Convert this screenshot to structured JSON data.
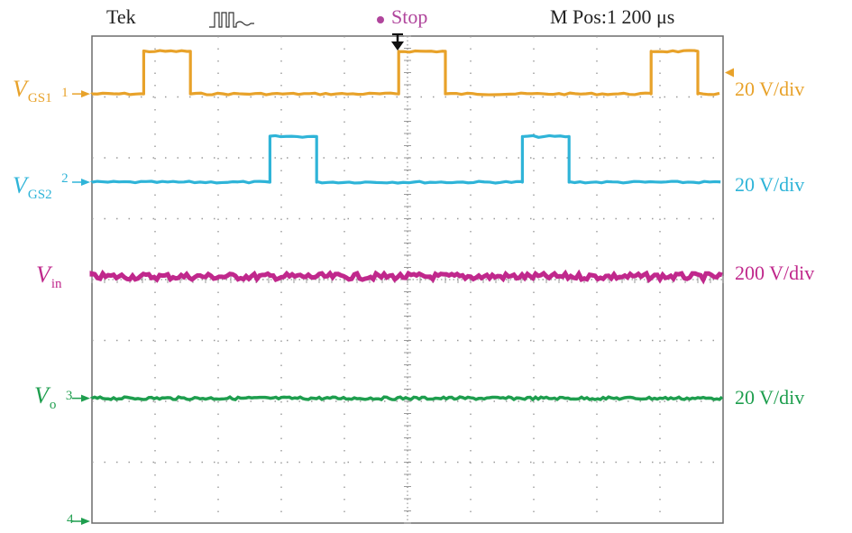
{
  "header": {
    "brand": "Tek",
    "status": "Stop",
    "position": "M Pos:1 200 μs"
  },
  "colors": {
    "ch1": "#E8A22A",
    "ch2": "#2FB4D8",
    "vin": "#C0288C",
    "ch3": "#1E9E4E",
    "ch4": "#1E9E4E",
    "stop_dot": "#B0459C",
    "grid": "#9a9a9a"
  },
  "channels": [
    {
      "id": "ch1",
      "label_main": "V",
      "label_sub": "GS1",
      "marker": "1",
      "scale": "20 V/div"
    },
    {
      "id": "ch2",
      "label_main": "V",
      "label_sub": "GS2",
      "marker": "2",
      "scale": "20 V/div"
    },
    {
      "id": "vin",
      "label_main": "V",
      "label_sub": "in",
      "marker": "",
      "scale": "200 V/div"
    },
    {
      "id": "ch3",
      "label_main": "V",
      "label_sub": "o",
      "marker": "3",
      "scale": "20 V/div"
    },
    {
      "id": "ch4",
      "label_main": "",
      "label_sub": "",
      "marker": "4",
      "scale": ""
    }
  ],
  "chart_data": {
    "type": "line",
    "grid": {
      "x_divisions": 10,
      "y_divisions": 8,
      "on": true
    },
    "x_unit": "div",
    "series": [
      {
        "channel": "ch1",
        "name": "VGS1",
        "scale": "20 V/div",
        "low_div": 7.05,
        "high_div": 7.75,
        "pulses_div": [
          [
            0.82,
            1.56
          ],
          [
            4.86,
            5.6
          ],
          [
            8.86,
            9.6
          ]
        ]
      },
      {
        "channel": "ch2",
        "name": "VGS2",
        "scale": "20 V/div",
        "low_div": 5.6,
        "high_div": 6.35,
        "pulses_div": [
          [
            2.82,
            3.56
          ],
          [
            6.82,
            7.56
          ]
        ]
      },
      {
        "channel": "vin",
        "name": "Vin",
        "scale": "200 V/div",
        "level_div": 4.05
      },
      {
        "channel": "ch3",
        "name": "Vo",
        "scale": "20 V/div",
        "level_div": 2.05
      }
    ]
  }
}
